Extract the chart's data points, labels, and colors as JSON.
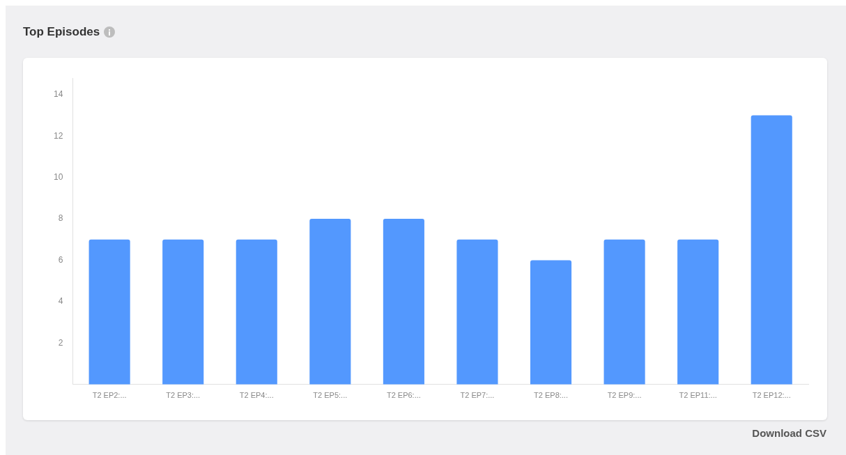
{
  "chart_data": {
    "type": "bar",
    "title": "Top Episodes",
    "categories": [
      "T2 EP2:...",
      "T2 EP3:...",
      "T2 EP4:...",
      "T2 EP5:...",
      "T2 EP6:...",
      "T2 EP7:...",
      "T2 EP8:...",
      "T2 EP9:...",
      "T2 EP11:...",
      "T2 EP12:..."
    ],
    "values": [
      7,
      7,
      7,
      8,
      8,
      7,
      6,
      7,
      7,
      13
    ],
    "color": "#5398fe",
    "ylim": [
      0,
      14.8
    ],
    "yticks": [
      2,
      4,
      6,
      8,
      10,
      12,
      14
    ],
    "grid": false,
    "annotations": [
      "Download CSV"
    ]
  }
}
